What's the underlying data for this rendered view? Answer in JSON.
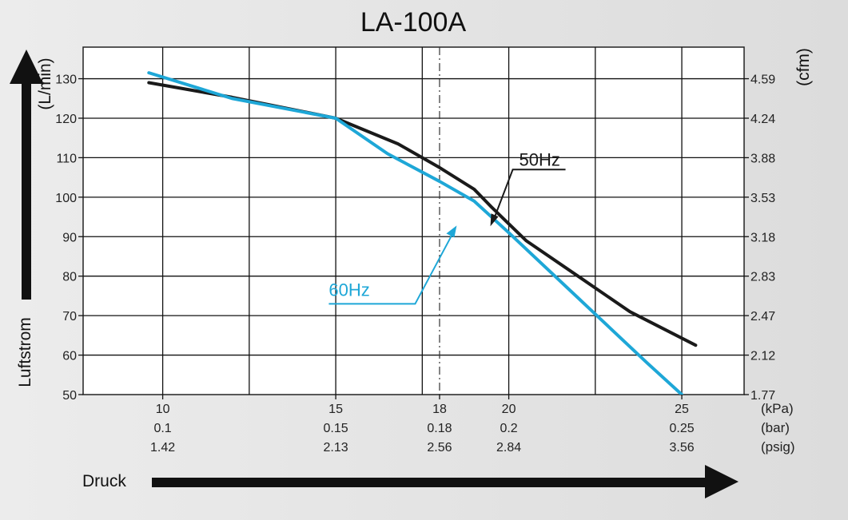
{
  "chart_data": {
    "type": "line",
    "title": "LA-100A",
    "xlabel": "Druck",
    "ylabel": "Luftstrom",
    "y_unit_left": "(L/min)",
    "y_unit_right": "(cfm)",
    "xlim": [
      7.7,
      26.8
    ],
    "ylim": [
      50,
      138
    ],
    "grid": true,
    "x_ticks": {
      "kpa": [
        "10",
        "15",
        "18",
        "20",
        "25"
      ],
      "bar": [
        "0.1",
        "0.15",
        "0.18",
        "0.2",
        "0.25"
      ],
      "psig": [
        "1.42",
        "2.13",
        "2.56",
        "2.84",
        "3.56"
      ],
      "values": [
        10,
        15,
        18,
        20,
        25
      ]
    },
    "x_units": [
      "(kPa)",
      "(bar)",
      "(psig)"
    ],
    "y_ticks_left": [
      "50",
      "60",
      "70",
      "80",
      "90",
      "100",
      "110",
      "120",
      "130"
    ],
    "y_ticks_right": [
      "1.77",
      "2.12",
      "2.47",
      "2.83",
      "3.18",
      "3.53",
      "3.88",
      "4.24",
      "4.59"
    ],
    "reference_line_x": 18,
    "series": [
      {
        "name": "50Hz",
        "color": "#1a1a1a",
        "x": [
          9.6,
          12.0,
          15.0,
          16.8,
          18.0,
          19.0,
          19.5,
          20.5,
          22.0,
          23.5,
          25.4
        ],
        "y": [
          129,
          125.3,
          120,
          113.5,
          107.5,
          102,
          97.5,
          89,
          80,
          71,
          62.5
        ],
        "label_pos": [
          20.3,
          108
        ]
      },
      {
        "name": "60Hz",
        "color": "#1ea7d7",
        "x": [
          9.6,
          12.0,
          15.0,
          16.5,
          18.0,
          19.0,
          20.0,
          22.0,
          24.0,
          25.0
        ],
        "y": [
          131.5,
          125,
          120,
          111,
          104,
          99,
          91,
          74.5,
          58,
          50
        ],
        "label_pos": [
          14.8,
          75
        ]
      }
    ]
  }
}
